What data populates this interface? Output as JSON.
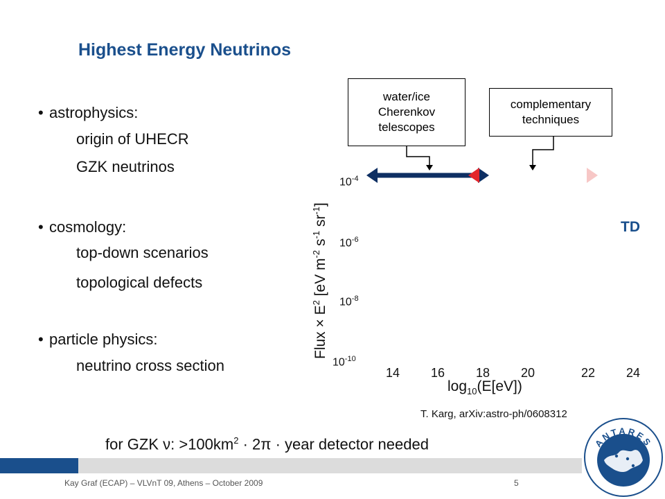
{
  "slide": {
    "title": "Highest Energy Neutrinos",
    "bullets": [
      {
        "label": "astrophysics:",
        "subs": [
          "origin of UHECR",
          "GZK neutrinos"
        ]
      },
      {
        "label": "cosmology:",
        "subs": [
          "top-down scenarios",
          "topological defects"
        ]
      },
      {
        "label": "particle physics:",
        "subs": [
          "neutrino cross section"
        ]
      }
    ],
    "bullet_symbol": "•"
  },
  "figure": {
    "callout_left": [
      "water/ice",
      "Cherenkov",
      "telescopes"
    ],
    "callout_right": [
      "complementary",
      "techniques"
    ],
    "y_ticks": [
      {
        "base": "10",
        "exp": "-4"
      },
      {
        "base": "10",
        "exp": "-6"
      },
      {
        "base": "10",
        "exp": "-8"
      },
      {
        "base": "10",
        "exp": "-10"
      }
    ],
    "x_ticks": [
      "14",
      "16",
      "18",
      "20",
      "22",
      "24"
    ],
    "y_label": {
      "a": "Flux × E",
      "a_sup": "2",
      "b": " [eV m",
      "b_sup": "-2",
      "c": " s",
      "c_sup": "-1",
      "d": " sr",
      "d_sup": "-1",
      "e": "]"
    },
    "x_label": {
      "a": "log",
      "a_sub": "10",
      "b": "(E[eV])"
    },
    "td_label": "TD",
    "reference": "T. Karg, arXiv:astro-ph/0608312",
    "colors": {
      "blue_arrow": "#0e2f63",
      "red_arrow": "#e3262b"
    }
  },
  "note": {
    "a": "for GZK ",
    "nu": "ν",
    "b": ": >100km",
    "sup": "2",
    "c": " · 2",
    "pi": "π",
    "d": " · year detector needed"
  },
  "footer": {
    "text": "Kay Graf (ECAP) – VLVnT 09, Athens – October 2009",
    "page_number": "5",
    "logo_text": "ANTARES"
  }
}
